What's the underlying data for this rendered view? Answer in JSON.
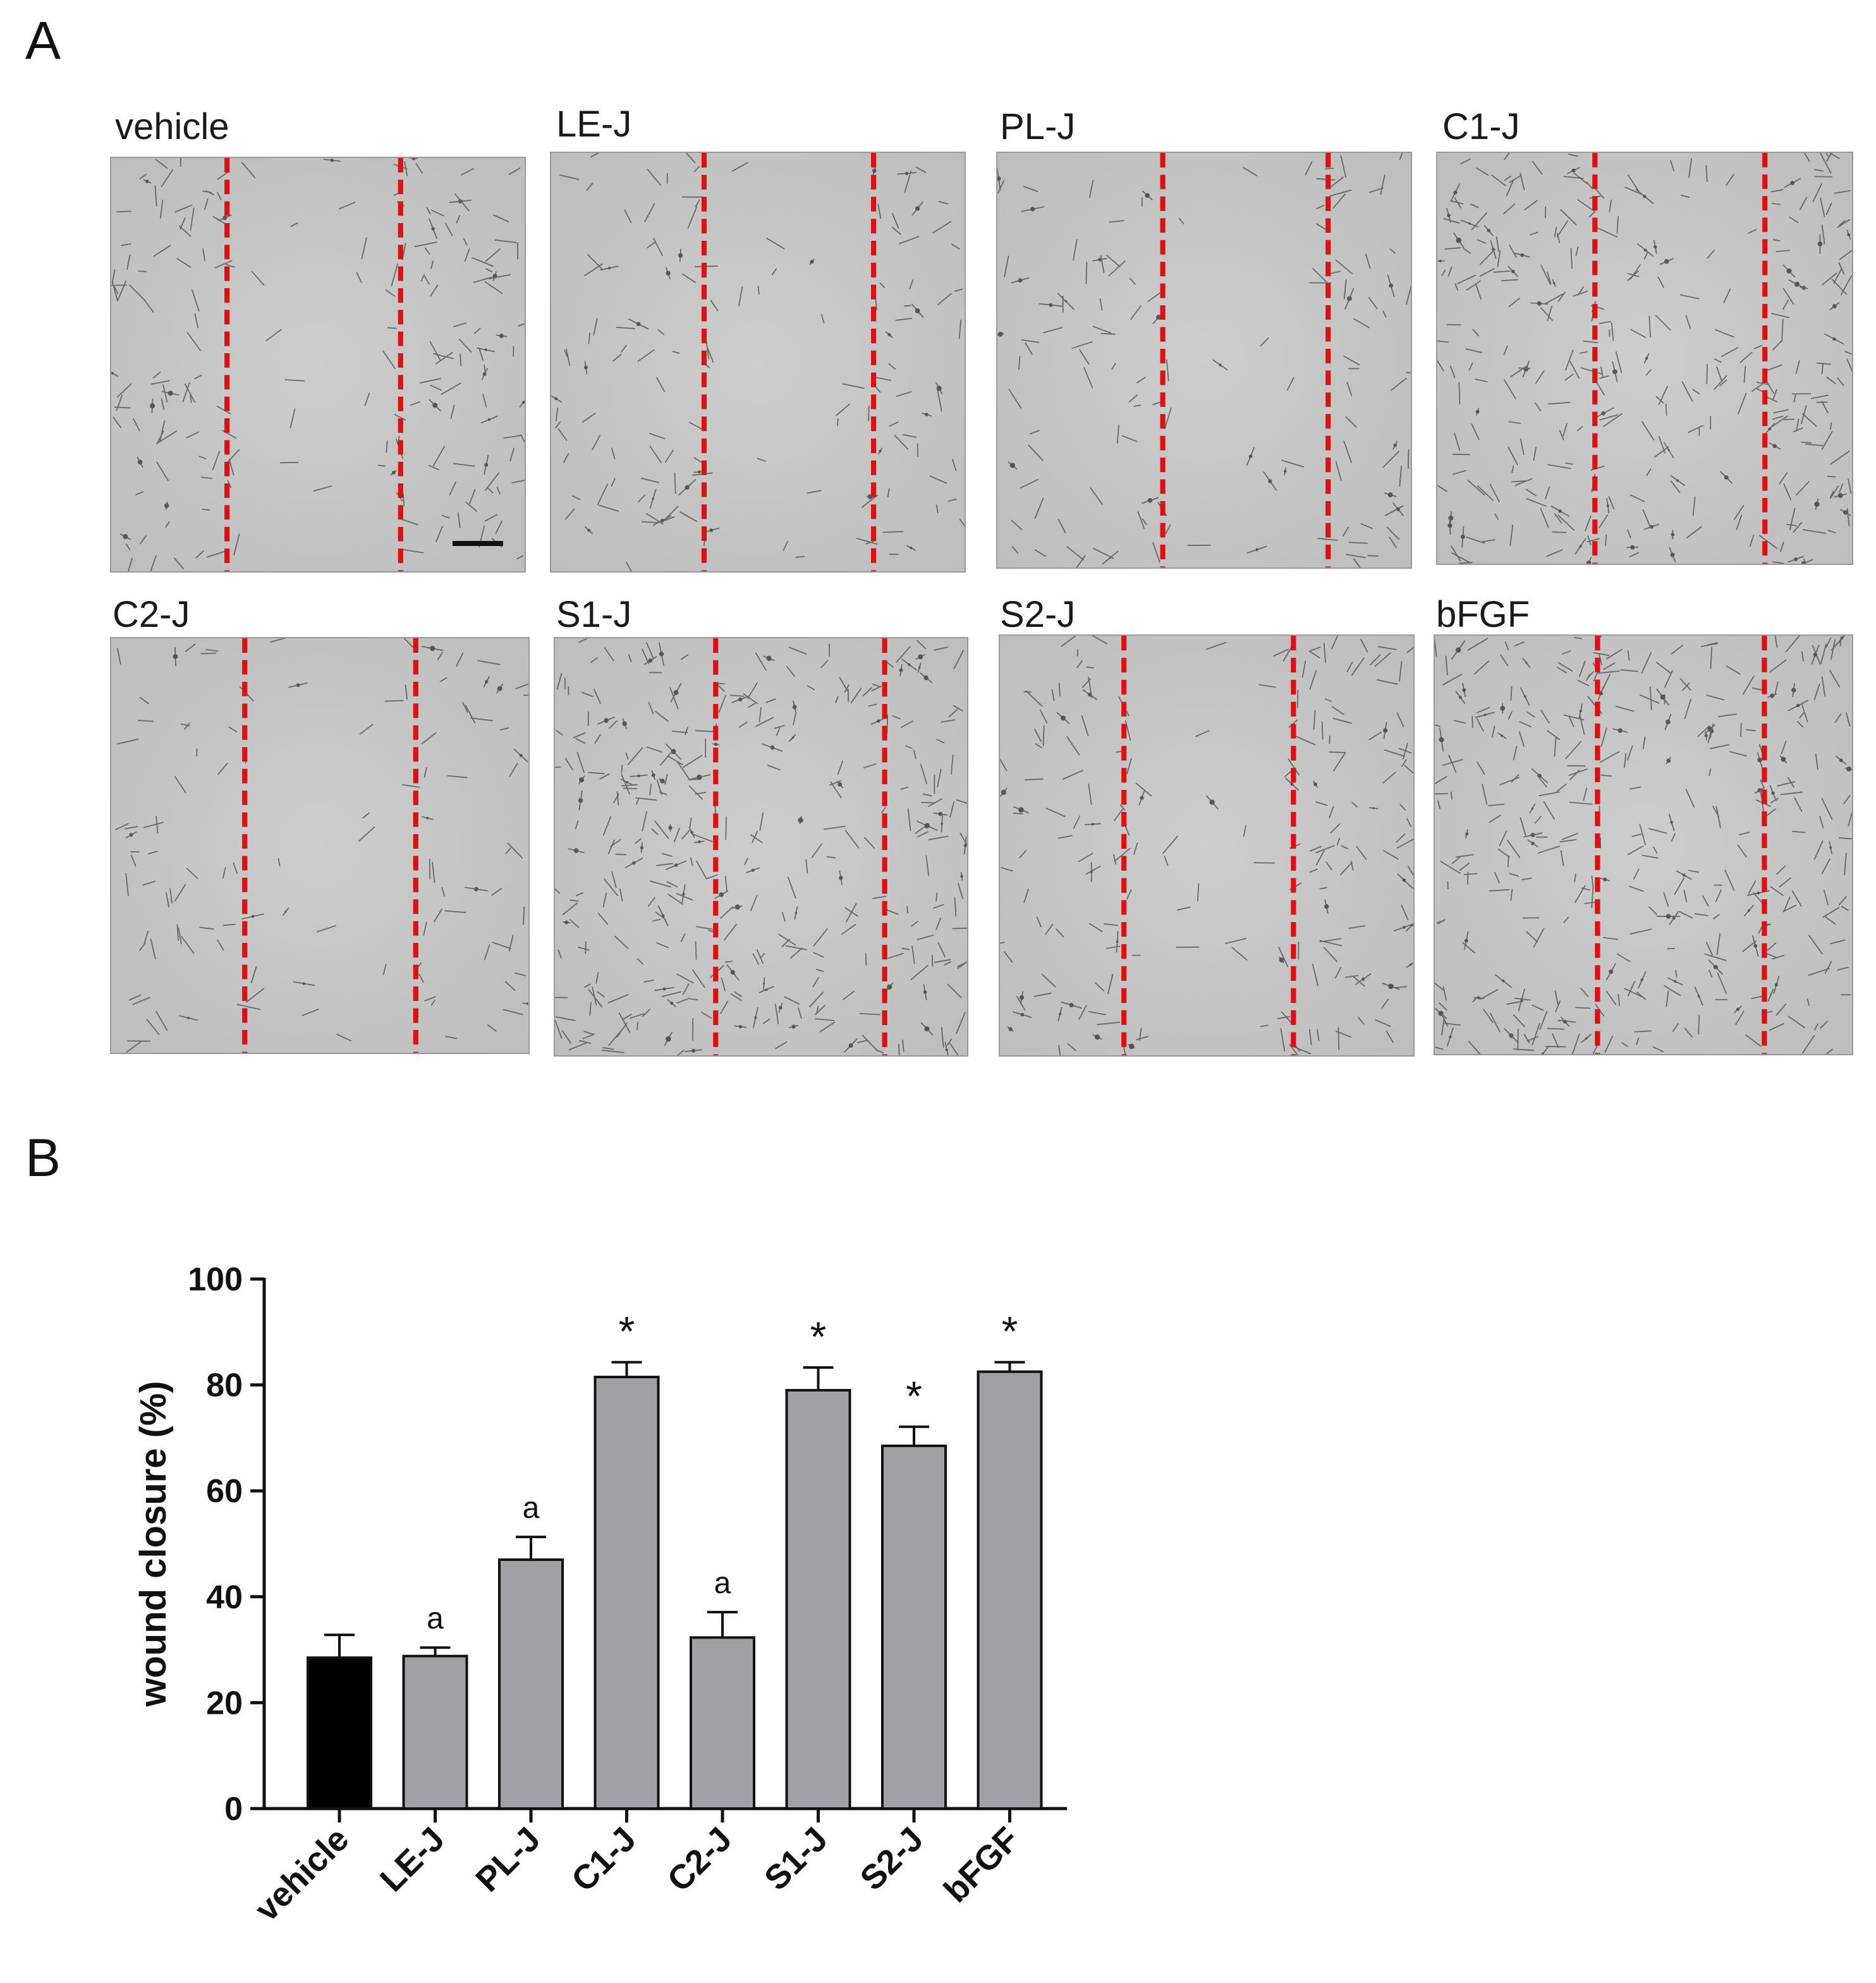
{
  "panels": {
    "a_label": "A",
    "b_label": "B"
  },
  "micrographs": [
    {
      "label": "vehicle"
    },
    {
      "label": "LE-J"
    },
    {
      "label": "PL-J"
    },
    {
      "label": "C1-J"
    },
    {
      "label": "C2-J"
    },
    {
      "label": "S1-J"
    },
    {
      "label": "S2-J"
    },
    {
      "label": "bFGF"
    }
  ],
  "colors": {
    "wound_edge_line": "#dd1111",
    "vehicle_bar": "#000000",
    "treatment_bar": "#a0a0a6",
    "micrograph_bg": "#c6c6c6"
  },
  "chart_data": {
    "type": "bar",
    "categories": [
      "vehicle",
      "LE-J",
      "PL-J",
      "C1-J",
      "C2-J",
      "S1-J",
      "S2-J",
      "bFGF"
    ],
    "values": [
      28.5,
      28.8,
      47.0,
      81.5,
      32.3,
      79.0,
      68.5,
      82.5
    ],
    "errors": [
      4.3,
      1.6,
      4.3,
      2.8,
      4.8,
      4.3,
      3.6,
      1.8
    ],
    "annotations": [
      "",
      "a",
      "a",
      "*",
      "a",
      "*",
      "*",
      "*"
    ],
    "bar_colors": [
      "#000000",
      "#a0a0a6",
      "#a0a0a6",
      "#a0a0a6",
      "#a0a0a6",
      "#a0a0a6",
      "#a0a0a6",
      "#a0a0a6"
    ],
    "title": "",
    "xlabel": "",
    "ylabel": "wound closure (%)",
    "ylim": [
      0,
      100
    ],
    "yticks": [
      0,
      20,
      40,
      60,
      80,
      100
    ],
    "grid": false,
    "legend": "none"
  }
}
